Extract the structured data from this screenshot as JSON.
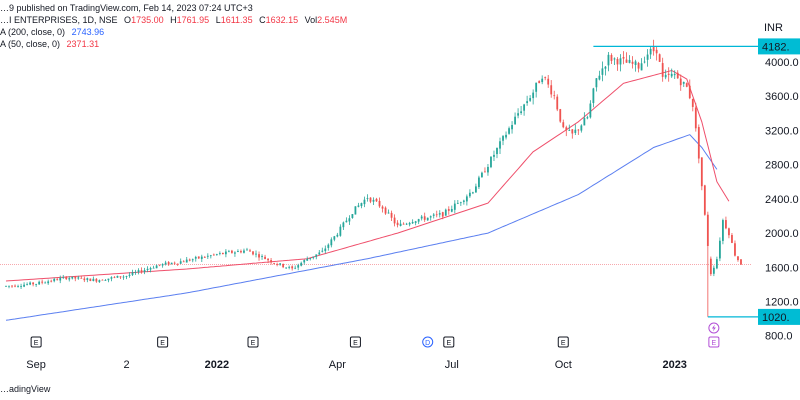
{
  "header": {
    "published": "…9 published on TradingView.com, Feb 14, 2023 07:24 UTC+3",
    "symbol": "…I ENTERPRISES, 1D, NSE",
    "ohlc": {
      "o_label": "O",
      "o": "1735.00",
      "h_label": "H",
      "h": "1761.95",
      "l_label": "L",
      "l": "1611.35",
      "c_label": "C",
      "c": "1632.15",
      "vol_label": "Vol",
      "vol": "2.545M"
    },
    "ma200_label": "A (200, close, 0)",
    "ma200_value": "2743.96",
    "ma50_label": "A (50, close, 0)",
    "ma50_value": "2371.31"
  },
  "footer": {
    "watermark": "…adingView"
  },
  "colors": {
    "up": "#26a69a",
    "down": "#ef5350",
    "ma200": "#5b7ff0",
    "ma50": "#ef4f6b",
    "hline": "#00b7d7",
    "label_bg": "#00bcd4"
  },
  "chart_data": {
    "type": "candlestick",
    "currency": "INR",
    "ylim": [
      750,
      4350
    ],
    "y_ticks": [
      800,
      1200,
      1600,
      2000,
      2400,
      2800,
      3200,
      3600,
      4000
    ],
    "y_tick_labels": [
      "800.0",
      "1200.0",
      "1600.0",
      "2000.0",
      "2400.0",
      "2800.0",
      "3200.0",
      "3600.0",
      "4000.0"
    ],
    "x_ticks": [
      {
        "label": "Sep",
        "bar": 10
      },
      {
        "label": "2",
        "bar": 40
      },
      {
        "label": "2022",
        "bar": 70
      },
      {
        "label": "Apr",
        "bar": 110
      },
      {
        "label": "Jul",
        "bar": 148
      },
      {
        "label": "Oct",
        "bar": 185
      },
      {
        "label": "2023",
        "bar": 222
      }
    ],
    "bold_x_ticks": [
      "2022",
      "2023"
    ],
    "price_tags": [
      {
        "value": 4182,
        "label": "4182."
      },
      {
        "value": 1020,
        "label": "1020."
      }
    ],
    "horizontal_lines": [
      {
        "value": 4182,
        "from_bar": 195
      },
      {
        "value": 1020,
        "from_bar": 233
      }
    ],
    "last_close": 1632.15,
    "bar_count": 245,
    "anchors": [
      [
        0,
        1380
      ],
      [
        10,
        1410
      ],
      [
        20,
        1480
      ],
      [
        30,
        1450
      ],
      [
        40,
        1500
      ],
      [
        50,
        1620
      ],
      [
        60,
        1680
      ],
      [
        70,
        1750
      ],
      [
        80,
        1800
      ],
      [
        90,
        1640
      ],
      [
        95,
        1580
      ],
      [
        100,
        1700
      ],
      [
        105,
        1780
      ],
      [
        110,
        2000
      ],
      [
        115,
        2250
      ],
      [
        120,
        2420
      ],
      [
        125,
        2300
      ],
      [
        130,
        2080
      ],
      [
        135,
        2150
      ],
      [
        140,
        2180
      ],
      [
        145,
        2220
      ],
      [
        150,
        2350
      ],
      [
        155,
        2500
      ],
      [
        160,
        2800
      ],
      [
        165,
        3100
      ],
      [
        170,
        3400
      ],
      [
        175,
        3650
      ],
      [
        178,
        3850
      ],
      [
        182,
        3600
      ],
      [
        185,
        3200
      ],
      [
        188,
        3150
      ],
      [
        193,
        3350
      ],
      [
        196,
        3800
      ],
      [
        200,
        4050
      ],
      [
        205,
        4000
      ],
      [
        210,
        3950
      ],
      [
        213,
        4100
      ],
      [
        216,
        4150
      ],
      [
        218,
        3800
      ],
      [
        222,
        3850
      ],
      [
        226,
        3700
      ],
      [
        228,
        3500
      ],
      [
        230,
        2900
      ],
      [
        232,
        2200
      ],
      [
        234,
        1520
      ],
      [
        236,
        1700
      ],
      [
        238,
        2150
      ],
      [
        240,
        2000
      ],
      [
        242,
        1750
      ],
      [
        244,
        1632
      ]
    ],
    "ma200_points": [
      [
        0,
        980
      ],
      [
        60,
        1300
      ],
      [
        120,
        1700
      ],
      [
        160,
        2000
      ],
      [
        190,
        2450
      ],
      [
        215,
        3000
      ],
      [
        227,
        3150
      ],
      [
        231,
        3000
      ],
      [
        236,
        2744
      ]
    ],
    "ma50_points": [
      [
        0,
        1440
      ],
      [
        60,
        1580
      ],
      [
        100,
        1700
      ],
      [
        130,
        2000
      ],
      [
        160,
        2350
      ],
      [
        175,
        2950
      ],
      [
        190,
        3300
      ],
      [
        205,
        3750
      ],
      [
        221,
        3900
      ],
      [
        226,
        3800
      ],
      [
        231,
        3300
      ],
      [
        236,
        2600
      ],
      [
        240,
        2371
      ]
    ],
    "event_markers": [
      {
        "label": "E",
        "bar": 10,
        "color": "#131722"
      },
      {
        "label": "E",
        "bar": 52,
        "color": "#131722"
      },
      {
        "label": "E",
        "bar": 82,
        "color": "#131722"
      },
      {
        "label": "E",
        "bar": 116,
        "color": "#131722"
      },
      {
        "label": "D",
        "bar": 140,
        "color": "#2962ff"
      },
      {
        "label": "E",
        "bar": 147,
        "color": "#131722"
      },
      {
        "label": "E",
        "bar": 185,
        "color": "#131722"
      },
      {
        "label": "E",
        "bar": 235,
        "color": "#b24fd6"
      }
    ]
  }
}
